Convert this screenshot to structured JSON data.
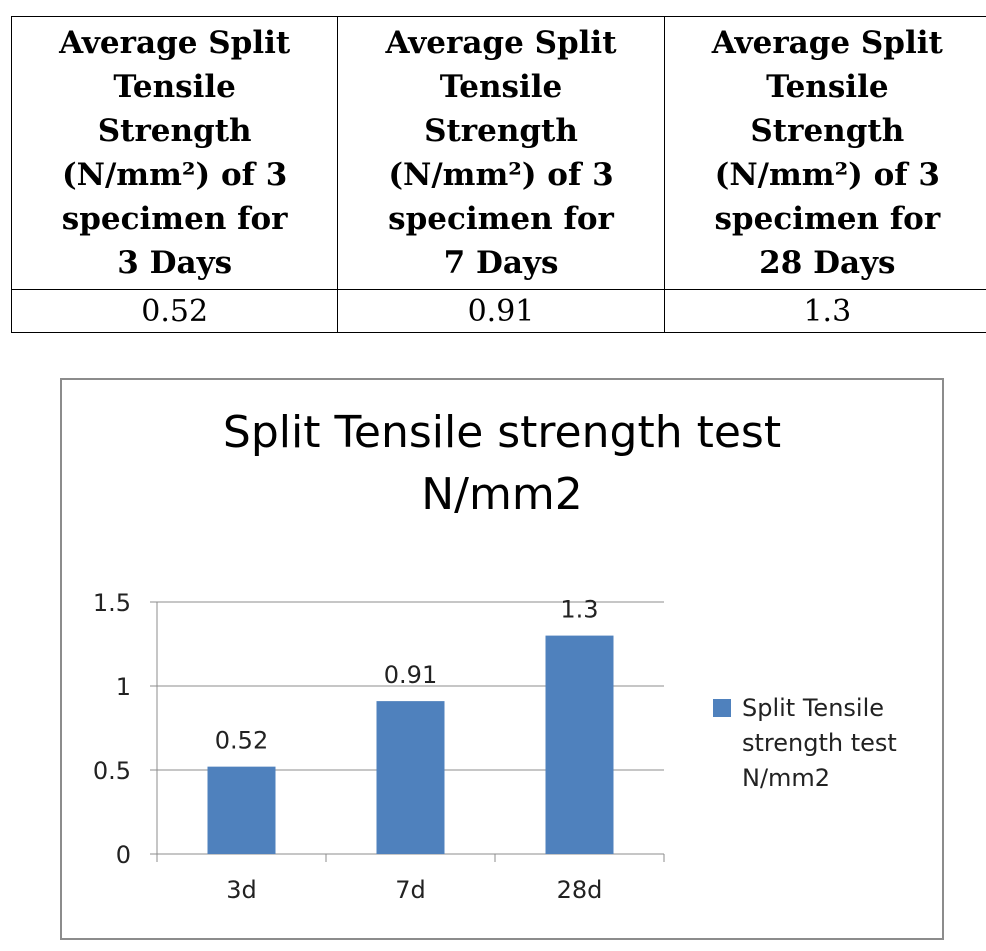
{
  "table": {
    "headers": [
      "Average Split\nTensile\nStrength\n(N/mm²) of 3\nspecimen for\n3 Days",
      "Average Split\nTensile\nStrength\n(N/mm²) of 3\nspecimen for\n7 Days",
      "Average Split\nTensile\nStrength\n(N/mm²) of 3\nspecimen for\n28 Days"
    ],
    "values": [
      "0.52",
      "0.91",
      "1.3"
    ]
  },
  "chart_data": {
    "type": "bar",
    "title": "Split Tensile strength test\nN/mm2",
    "categories": [
      "3d",
      "7d",
      "28d"
    ],
    "series": [
      {
        "name": "Split Tensile strength test N/mm2",
        "values": [
          0.52,
          0.91,
          1.3
        ]
      }
    ],
    "data_labels": [
      "0.52",
      "0.91",
      "1.3"
    ],
    "y_ticks": [
      "0",
      "0.5",
      "1",
      "1.5"
    ],
    "ylim": [
      0,
      1.5
    ],
    "grid": true,
    "legend_position": "right",
    "legend_lines": [
      "Split Tensile",
      "strength test",
      "N/mm2"
    ],
    "bar_color": "#4F81BD"
  }
}
